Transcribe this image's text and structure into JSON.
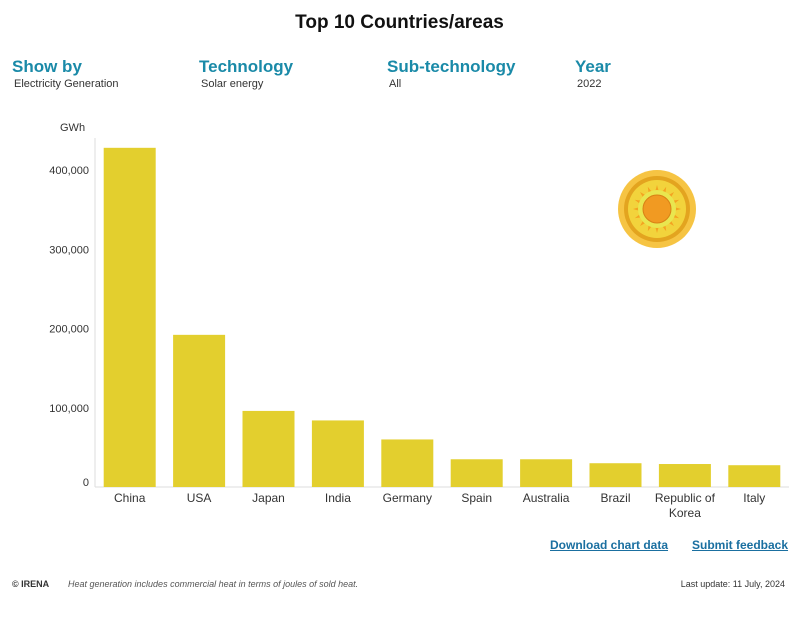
{
  "filters": [
    {
      "label": "Show by",
      "value": "Electricity Generation"
    },
    {
      "label": "Technology",
      "value": "Solar energy"
    },
    {
      "label": "Sub-technology",
      "value": "All"
    },
    {
      "label": "Year",
      "value": "2022"
    }
  ],
  "links": {
    "download": "Download chart data",
    "feedback": "Submit feedback"
  },
  "footer": {
    "copyright": "© IRENA",
    "note": "Heat generation includes commercial heat in terms of joules of sold heat.",
    "last_update": "Last update: 11 July, 2024"
  },
  "icon": {
    "name": "sun-icon"
  },
  "colors": {
    "bar": "#e3cf2e",
    "accent": "#1a8aa8"
  },
  "chart_data": {
    "type": "bar",
    "title": "Top 10 Countries/areas",
    "ylabel": "GWh",
    "categories": [
      "China",
      "USA",
      "Japan",
      "India",
      "Germany",
      "Spain",
      "Australia",
      "Brazil",
      "Republic of Korea",
      "Italy"
    ],
    "category_lines": [
      [
        "China"
      ],
      [
        "USA"
      ],
      [
        "Japan"
      ],
      [
        "India"
      ],
      [
        "Germany"
      ],
      [
        "Spain"
      ],
      [
        "Australia"
      ],
      [
        "Brazil"
      ],
      [
        "Republic of",
        "Korea"
      ],
      [
        "Italy"
      ]
    ],
    "values": [
      428000,
      192000,
      96000,
      84000,
      60000,
      35000,
      35000,
      30000,
      29000,
      27500
    ],
    "ylim": [
      0,
      440000
    ],
    "yticks": [
      0,
      100000,
      200000,
      300000,
      400000
    ],
    "ytick_labels": [
      "0",
      "100,000",
      "200,000",
      "300,000",
      "400,000"
    ]
  }
}
